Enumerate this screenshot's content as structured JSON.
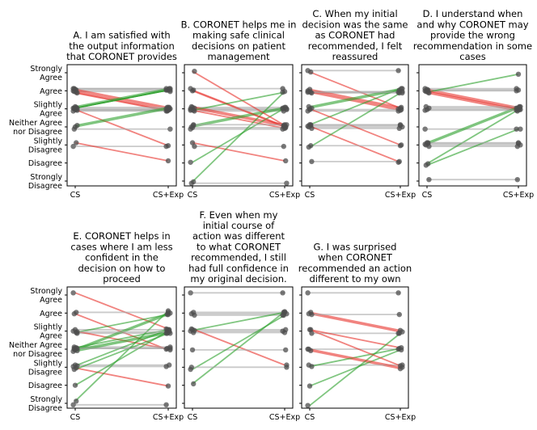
{
  "y_levels": [
    "Strongly Disagree",
    "Disagree",
    "Slightly Disagree",
    "Neither Agree nor Disagree",
    "Slightly Agree",
    "Agree",
    "Strongly Agree"
  ],
  "x_labels": [
    "CS",
    "CS+Exp"
  ],
  "colors": {
    "increase": "#2ca02c",
    "decrease": "#e8302a",
    "same": "#a6a6a6",
    "point": "#4d4d4d"
  },
  "chart_data": [
    {
      "type": "slope",
      "id": "A",
      "title": [
        "A. I am satisfied with",
        "the output information",
        "that CORONET provides"
      ],
      "categories": [
        "CS",
        "CS+Exp"
      ],
      "ylim": [
        1,
        7
      ],
      "pairs": [
        [
          6,
          6
        ],
        [
          6,
          6
        ],
        [
          6,
          6
        ],
        [
          6,
          5
        ],
        [
          6,
          5
        ],
        [
          6,
          5
        ],
        [
          6,
          5
        ],
        [
          6,
          6
        ],
        [
          5,
          6
        ],
        [
          5,
          5
        ],
        [
          5,
          5
        ],
        [
          5,
          5
        ],
        [
          5,
          5
        ],
        [
          5,
          5
        ],
        [
          5,
          6
        ],
        [
          5,
          6
        ],
        [
          5,
          3
        ],
        [
          4,
          4
        ],
        [
          4,
          5
        ],
        [
          4,
          5
        ],
        [
          3,
          3
        ],
        [
          3,
          2
        ],
        [
          5,
          6
        ]
      ]
    },
    {
      "type": "slope",
      "id": "B",
      "title": [
        "B. CORONET helps me in",
        "making safe clinical",
        "decisions on patient",
        "management"
      ],
      "categories": [
        "CS",
        "CS+Exp"
      ],
      "ylim": [
        1,
        7
      ],
      "pairs": [
        [
          6,
          6
        ],
        [
          6,
          4
        ],
        [
          5,
          5
        ],
        [
          5,
          5
        ],
        [
          5,
          5
        ],
        [
          5,
          5
        ],
        [
          5,
          4
        ],
        [
          5,
          4
        ],
        [
          5,
          4
        ],
        [
          4,
          4
        ],
        [
          4,
          4
        ],
        [
          4,
          5
        ],
        [
          4,
          5
        ],
        [
          3,
          3
        ],
        [
          3,
          2
        ],
        [
          2,
          5
        ],
        [
          1,
          6
        ],
        [
          1,
          1
        ],
        [
          7,
          4
        ],
        [
          6,
          4
        ],
        [
          5,
          6
        ],
        [
          4,
          4
        ]
      ]
    },
    {
      "type": "slope",
      "id": "C",
      "title": [
        "C. When my initial",
        "decision was the same",
        "as CORONET had",
        "recommended, I felt",
        "reassured"
      ],
      "categories": [
        "CS",
        "CS+Exp"
      ],
      "ylim": [
        1,
        7
      ],
      "pairs": [
        [
          7,
          7
        ],
        [
          7,
          5
        ],
        [
          6,
          6
        ],
        [
          6,
          6
        ],
        [
          6,
          5
        ],
        [
          6,
          5
        ],
        [
          6,
          5
        ],
        [
          5,
          6
        ],
        [
          5,
          6
        ],
        [
          5,
          5
        ],
        [
          5,
          5
        ],
        [
          4,
          4
        ],
        [
          4,
          4
        ],
        [
          4,
          4
        ],
        [
          4,
          6
        ],
        [
          4,
          2
        ],
        [
          3,
          3
        ],
        [
          3,
          6
        ],
        [
          2,
          2
        ],
        [
          5,
          3
        ],
        [
          6,
          6
        ],
        [
          4,
          4
        ]
      ]
    },
    {
      "type": "slope",
      "id": "D",
      "title": [
        "D. I understand when",
        "and why CORONET may",
        "provide the wrong",
        "recommendation in some",
        "cases"
      ],
      "categories": [
        "CS",
        "CS+Exp"
      ],
      "ylim": [
        1,
        7
      ],
      "pairs": [
        [
          6,
          6
        ],
        [
          6,
          6
        ],
        [
          6,
          5
        ],
        [
          6,
          5
        ],
        [
          6,
          5
        ],
        [
          6,
          6
        ],
        [
          6,
          7
        ],
        [
          5,
          5
        ],
        [
          5,
          5
        ],
        [
          5,
          5
        ],
        [
          4,
          4
        ],
        [
          3,
          3
        ],
        [
          3,
          3
        ],
        [
          3,
          3
        ],
        [
          3,
          5
        ],
        [
          3,
          5
        ],
        [
          2,
          5
        ],
        [
          2,
          4
        ],
        [
          1,
          1
        ],
        [
          6,
          5
        ],
        [
          5,
          5
        ],
        [
          3,
          3
        ]
      ]
    },
    {
      "type": "slope",
      "id": "E",
      "title": [
        "E. CORONET helps in",
        "cases where I am less",
        "confident in the",
        "decision on how to",
        "proceed"
      ],
      "categories": [
        "CS",
        "CS+Exp"
      ],
      "ylim": [
        1,
        7
      ],
      "pairs": [
        [
          7,
          5
        ],
        [
          6,
          6
        ],
        [
          6,
          4
        ],
        [
          5,
          5
        ],
        [
          5,
          5
        ],
        [
          5,
          4
        ],
        [
          5,
          6
        ],
        [
          4,
          4
        ],
        [
          4,
          4
        ],
        [
          4,
          5
        ],
        [
          4,
          5
        ],
        [
          4,
          5
        ],
        [
          4,
          6
        ],
        [
          4,
          6
        ],
        [
          3,
          3
        ],
        [
          3,
          3
        ],
        [
          3,
          2
        ],
        [
          3,
          5
        ],
        [
          3,
          5
        ],
        [
          2,
          5
        ],
        [
          1,
          1
        ],
        [
          1,
          6
        ],
        [
          4,
          4
        ],
        [
          5,
          5
        ]
      ]
    },
    {
      "type": "slope",
      "id": "F",
      "title": [
        "F. Even when my",
        "initial course of",
        "action was different",
        "to what CORONET",
        "recommended, I still",
        "had full confidence in",
        "my original decision."
      ],
      "categories": [
        "CS",
        "CS+Exp"
      ],
      "ylim": [
        1,
        7
      ],
      "pairs": [
        [
          7,
          7
        ],
        [
          6,
          6
        ],
        [
          6,
          6
        ],
        [
          6,
          6
        ],
        [
          5,
          5
        ],
        [
          5,
          5
        ],
        [
          5,
          5
        ],
        [
          5,
          3
        ],
        [
          5,
          6
        ],
        [
          4,
          4
        ],
        [
          3,
          6
        ],
        [
          2,
          6
        ],
        [
          3,
          3
        ]
      ]
    },
    {
      "type": "slope",
      "id": "G",
      "title": [
        "G. I was surprised",
        "when CORONET",
        "recommended an action",
        "different to my own"
      ],
      "categories": [
        "CS",
        "CS+Exp"
      ],
      "ylim": [
        1,
        7
      ],
      "pairs": [
        [
          7,
          7
        ],
        [
          6,
          5
        ],
        [
          6,
          5
        ],
        [
          5,
          5
        ],
        [
          5,
          4
        ],
        [
          4,
          4
        ],
        [
          4,
          3
        ],
        [
          3,
          3
        ],
        [
          3,
          4
        ],
        [
          2,
          4
        ],
        [
          1,
          5
        ],
        [
          5,
          3
        ],
        [
          4,
          3
        ],
        [
          6,
          6
        ]
      ]
    }
  ]
}
